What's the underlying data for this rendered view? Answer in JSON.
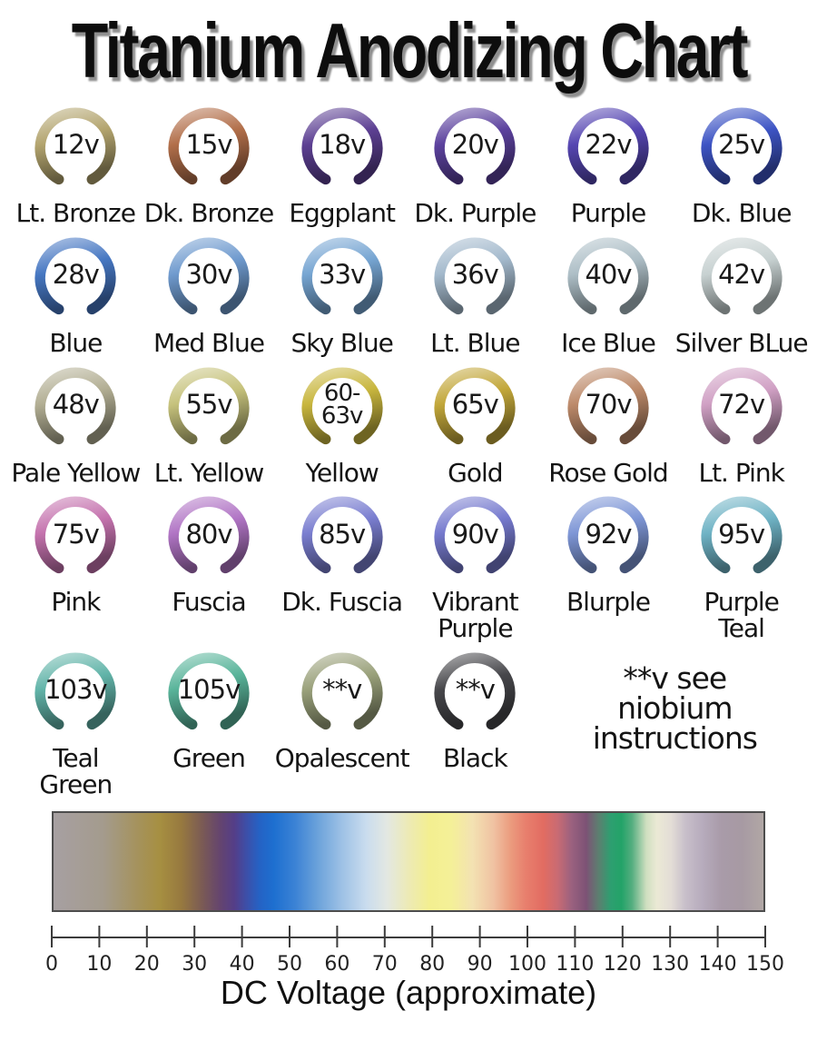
{
  "title": "Titanium Anodizing Chart",
  "note_lines": "**v see\nniobium\ninstructions",
  "chart_data": {
    "type": "heatmap",
    "title": "Titanium Anodizing Chart",
    "xlabel": "DC Voltage (approximate)",
    "xlim": [
      0,
      150
    ],
    "x_ticks": [
      0,
      10,
      20,
      30,
      40,
      50,
      60,
      70,
      80,
      90,
      100,
      110,
      120,
      130,
      140,
      150
    ],
    "grid": false,
    "legend": false,
    "points": [
      {
        "voltage": "12v",
        "name": "Lt. Bronze",
        "color": "#b3a46e"
      },
      {
        "voltage": "15v",
        "name": "Dk. Bronze",
        "color": "#b26f4a"
      },
      {
        "voltage": "18v",
        "name": "Eggplant",
        "color": "#5d4093"
      },
      {
        "voltage": "20v",
        "name": "Dk. Purple",
        "color": "#5c429e"
      },
      {
        "voltage": "22v",
        "name": "Purple",
        "color": "#5646b2"
      },
      {
        "voltage": "25v",
        "name": "Dk. Blue",
        "color": "#3d54c4"
      },
      {
        "voltage": "28v",
        "name": "Blue",
        "color": "#4677c2"
      },
      {
        "voltage": "30v",
        "name": "Med Blue",
        "color": "#6f9ace"
      },
      {
        "voltage": "33v",
        "name": "Sky Blue",
        "color": "#76a5d2"
      },
      {
        "voltage": "36v",
        "name": "Lt. Blue",
        "color": "#a3b9cc"
      },
      {
        "voltage": "40v",
        "name": "Ice Blue",
        "color": "#adbec6"
      },
      {
        "voltage": "42v",
        "name": "Silver BLue",
        "color": "#c7d1d1"
      },
      {
        "voltage": "48v",
        "name": "Pale Yellow",
        "color": "#b2ae93"
      },
      {
        "voltage": "55v",
        "name": "Lt. Yellow",
        "color": "#c6c27c"
      },
      {
        "voltage": "60-\n63v",
        "name": "Yellow",
        "color": "#c8b63e"
      },
      {
        "voltage": "65v",
        "name": "Gold",
        "color": "#c2a73a"
      },
      {
        "voltage": "70v",
        "name": "Rose Gold",
        "color": "#bd8a6a"
      },
      {
        "voltage": "72v",
        "name": "Lt. Pink",
        "color": "#d0a0c4"
      },
      {
        "voltage": "75v",
        "name": "Pink",
        "color": "#c573ae"
      },
      {
        "voltage": "80v",
        "name": "Fuscia",
        "color": "#b175c5"
      },
      {
        "voltage": "85v",
        "name": "Dk. Fuscia",
        "color": "#7a7ed0"
      },
      {
        "voltage": "90v",
        "name": "Vibrant\nPurple",
        "color": "#767ace"
      },
      {
        "voltage": "92v",
        "name": "Blurple",
        "color": "#7e96d6"
      },
      {
        "voltage": "95v",
        "name": "Purple\nTeal",
        "color": "#6fb3c5"
      },
      {
        "voltage": "103v",
        "name": "Teal\nGreen",
        "color": "#62b4a9"
      },
      {
        "voltage": "105v",
        "name": "Green",
        "color": "#59b49a"
      },
      {
        "voltage": "**v",
        "name": "Opalescent",
        "color": "#9aa17b"
      },
      {
        "voltage": "**v",
        "name": "Black",
        "color": "#47474b"
      }
    ],
    "gradient_stops": [
      {
        "pos": 0,
        "color": "#a7a0a2"
      },
      {
        "pos": 7,
        "color": "#a49b8d"
      },
      {
        "pos": 12,
        "color": "#a5925b"
      },
      {
        "pos": 15,
        "color": "#a68f41"
      },
      {
        "pos": 18,
        "color": "#97793f"
      },
      {
        "pos": 21,
        "color": "#7a5a55"
      },
      {
        "pos": 23.5,
        "color": "#64446f"
      },
      {
        "pos": 25.5,
        "color": "#543e88"
      },
      {
        "pos": 27,
        "color": "#3f4da5"
      },
      {
        "pos": 29,
        "color": "#2562c4"
      },
      {
        "pos": 31,
        "color": "#1d6fd0"
      },
      {
        "pos": 34,
        "color": "#3b82d5"
      },
      {
        "pos": 37,
        "color": "#68a0da"
      },
      {
        "pos": 40.5,
        "color": "#9cc0e5"
      },
      {
        "pos": 44,
        "color": "#c9dcee"
      },
      {
        "pos": 47,
        "color": "#e3e8e2"
      },
      {
        "pos": 50,
        "color": "#edeab5"
      },
      {
        "pos": 53,
        "color": "#f3ef90"
      },
      {
        "pos": 56,
        "color": "#f4f098"
      },
      {
        "pos": 59,
        "color": "#f3e2b2"
      },
      {
        "pos": 62,
        "color": "#f0c2a2"
      },
      {
        "pos": 64.5,
        "color": "#eb9a7d"
      },
      {
        "pos": 66.5,
        "color": "#e87f6d"
      },
      {
        "pos": 69,
        "color": "#e26c62"
      },
      {
        "pos": 71,
        "color": "#c96b73"
      },
      {
        "pos": 73,
        "color": "#9a617f"
      },
      {
        "pos": 75,
        "color": "#7d5275"
      },
      {
        "pos": 76.8,
        "color": "#5c7f70"
      },
      {
        "pos": 78.5,
        "color": "#2d9f70"
      },
      {
        "pos": 80,
        "color": "#23a368"
      },
      {
        "pos": 81.5,
        "color": "#55ae80"
      },
      {
        "pos": 83.5,
        "color": "#cfdfc0"
      },
      {
        "pos": 85,
        "color": "#ebe9d5"
      },
      {
        "pos": 87,
        "color": "#e3ddd6"
      },
      {
        "pos": 89,
        "color": "#c8bfca"
      },
      {
        "pos": 91.5,
        "color": "#b6abbc"
      },
      {
        "pos": 94,
        "color": "#a99ba9"
      },
      {
        "pos": 97,
        "color": "#a79aa3"
      },
      {
        "pos": 100,
        "color": "#b1a7a5"
      }
    ]
  }
}
